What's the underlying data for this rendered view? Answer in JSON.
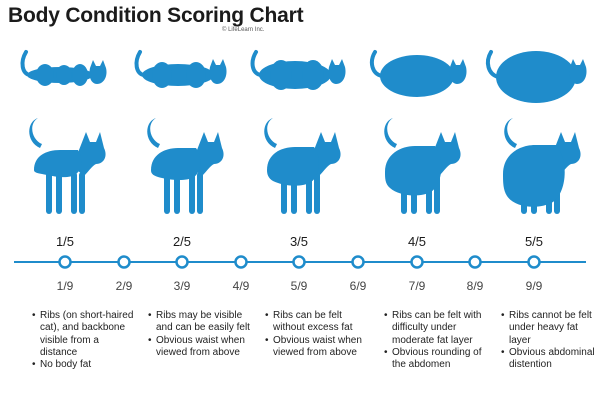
{
  "title": "Body Condition Scoring Chart",
  "copyright": "© LifeLearn Inc.",
  "colors": {
    "accent": "#1f8ccb",
    "text": "#1b1b1b"
  },
  "stages": [
    {
      "score5": "1/5",
      "score9": "1/9",
      "figure": "very thin cat silhouette",
      "bullets": [
        "Ribs (on short-haired cat), and backbone visible from a distance",
        "No body fat"
      ]
    },
    {
      "score5": "2/5",
      "score9": "3/9",
      "figure": "thin cat silhouette",
      "bullets": [
        "Ribs may be visible and can be easily felt",
        "Obvious waist when viewed from above"
      ]
    },
    {
      "score5": "3/5",
      "score9": "5/9",
      "figure": "ideal cat silhouette",
      "bullets": [
        "Ribs can be felt without excess fat",
        "Obvious waist when viewed from above"
      ]
    },
    {
      "score5": "4/5",
      "score9": "7/9",
      "figure": "overweight cat silhouette",
      "bullets": [
        "Ribs can be felt with difficulty under moderate fat layer",
        "Obvious rounding of the abdomen"
      ]
    },
    {
      "score5": "5/5",
      "score9": "9/9",
      "figure": "obese cat silhouette",
      "bullets": [
        "Ribs cannot be felt under heavy fat layer",
        "Obvious abdominal distention"
      ]
    }
  ],
  "intermediate_scores": [
    "2/9",
    "4/9",
    "6/9",
    "8/9"
  ]
}
